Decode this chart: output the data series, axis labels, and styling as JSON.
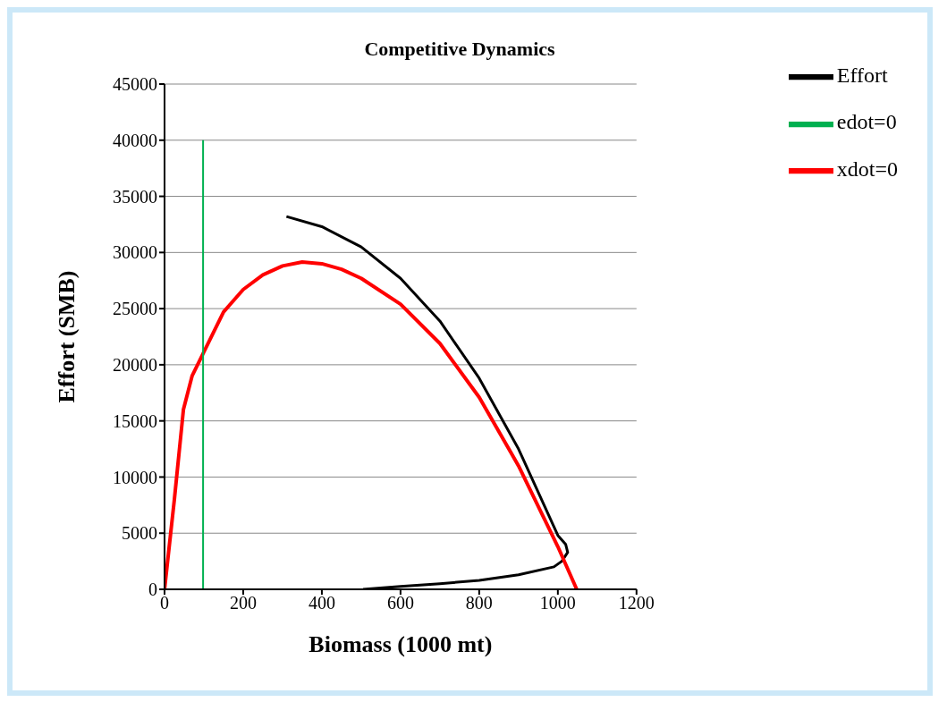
{
  "chart_data": {
    "type": "line",
    "title": "Competitive Dynamics",
    "xlabel": "Biomass (1000 mt)",
    "ylabel": "Effort (SMB)",
    "xlim": [
      0,
      1200
    ],
    "xticks": [
      0,
      200,
      400,
      600,
      800,
      1000,
      1200
    ],
    "ylim": [
      0,
      45000
    ],
    "yticks": [
      0,
      5000,
      10000,
      15000,
      20000,
      25000,
      30000,
      35000,
      40000,
      45000
    ],
    "grid": "y",
    "legend": "top right",
    "marker": "none",
    "line_style": "solid",
    "series": [
      {
        "name": "Effort",
        "color": "#000000",
        "x": [
          310,
          400,
          500,
          600,
          700,
          800,
          900,
          1000,
          1020,
          1025,
          1010,
          990,
          900,
          800,
          700,
          600,
          505
        ],
        "values": [
          33200,
          32300,
          30500,
          27700,
          23900,
          18800,
          12500,
          4800,
          4000,
          3300,
          2500,
          2000,
          1300,
          800,
          500,
          250,
          0
        ]
      },
      {
        "name": "xdot=0",
        "color": "#ff0000",
        "x": [
          0,
          25,
          48,
          70,
          98,
          150,
          200,
          250,
          300,
          350,
          400,
          450,
          500,
          600,
          700,
          800,
          900,
          1000,
          1048
        ],
        "values": [
          0,
          8000,
          16000,
          19000,
          21000,
          24700,
          26700,
          28000,
          28800,
          29150,
          29000,
          28500,
          27700,
          25400,
          21900,
          17100,
          11000,
          3800,
          0
        ]
      },
      {
        "name": "edot=0",
        "color": "#00b050",
        "x": [
          98,
          98
        ],
        "values": [
          0,
          40000
        ]
      }
    ]
  }
}
